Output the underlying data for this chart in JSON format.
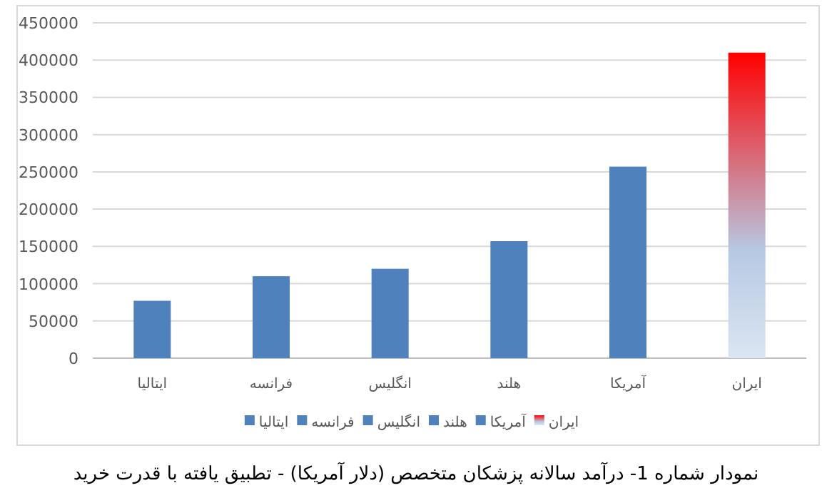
{
  "chart_data": {
    "type": "bar",
    "title": "نمودار شماره 1- درآمد سالانه پزشکان متخصص (دلار آمریکا) - تطبیق یافته با قدرت خرید",
    "categories": [
      "ایتالیا",
      "فرانسه",
      "انگلیس",
      "هلند",
      "آمریکا",
      "ایران"
    ],
    "series": [
      {
        "name": "ایتالیا",
        "color": "#4f81bd",
        "values": [
          77000,
          null,
          null,
          null,
          null,
          null
        ]
      },
      {
        "name": "فرانسه",
        "color": "#4f81bd",
        "values": [
          null,
          110000,
          null,
          null,
          null,
          null
        ]
      },
      {
        "name": "انگلیس",
        "color": "#4f81bd",
        "values": [
          null,
          null,
          120000,
          null,
          null,
          null
        ]
      },
      {
        "name": "هلند",
        "color": "#4f81bd",
        "values": [
          null,
          null,
          null,
          157000,
          null,
          null
        ]
      },
      {
        "name": "آمریکا",
        "color": "#4f81bd",
        "values": [
          null,
          null,
          null,
          null,
          257000,
          null
        ]
      },
      {
        "name": "ایران",
        "color": "#ff0000",
        "values": [
          null,
          null,
          null,
          null,
          null,
          410000
        ]
      }
    ],
    "ylim": [
      0,
      450000
    ],
    "yticks": [
      0,
      50000,
      100000,
      150000,
      200000,
      250000,
      300000,
      350000,
      400000,
      450000
    ],
    "grid": "y",
    "legend": "bottom"
  }
}
